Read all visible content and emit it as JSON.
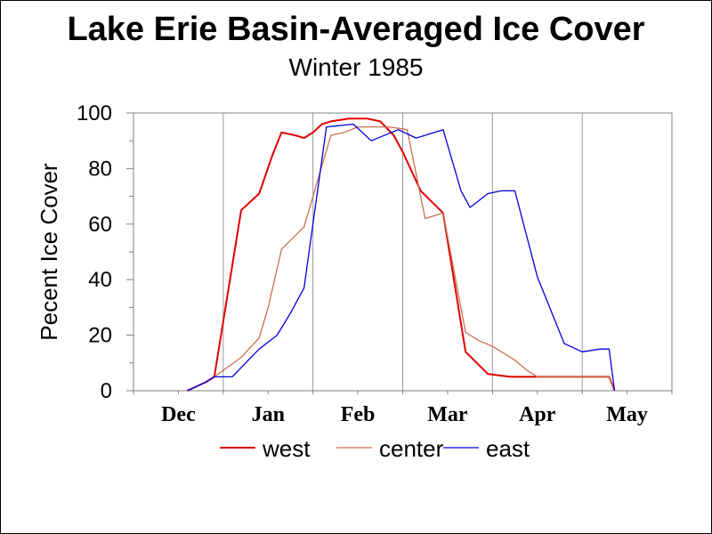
{
  "chart_data": {
    "type": "line",
    "title": "Lake Erie Basin-Averaged Ice Cover",
    "subtitle": "Winter 1985",
    "ylabel": "Pecent Ice Cover",
    "xlabel": "",
    "ylim": [
      0,
      100
    ],
    "yticks": [
      0,
      20,
      40,
      60,
      80,
      100
    ],
    "xlim": [
      0,
      6
    ],
    "month_ticks": [
      "Dec",
      "Jan",
      "Feb",
      "Mar",
      "Apr",
      "May"
    ],
    "grid": true,
    "legend_position": "bottom",
    "series": [
      {
        "name": "west",
        "color": "#e00000",
        "points": [
          [
            0.6,
            0
          ],
          [
            0.8,
            3
          ],
          [
            0.9,
            5
          ],
          [
            1.2,
            65
          ],
          [
            1.4,
            71
          ],
          [
            1.55,
            85
          ],
          [
            1.65,
            93
          ],
          [
            1.8,
            92
          ],
          [
            1.9,
            91
          ],
          [
            2.0,
            93
          ],
          [
            2.1,
            96
          ],
          [
            2.2,
            97
          ],
          [
            2.4,
            98
          ],
          [
            2.6,
            98
          ],
          [
            2.75,
            97
          ],
          [
            2.9,
            92
          ],
          [
            3.0,
            86
          ],
          [
            3.2,
            72
          ],
          [
            3.45,
            64
          ],
          [
            3.7,
            14
          ],
          [
            3.95,
            6
          ],
          [
            4.2,
            5
          ],
          [
            4.5,
            5
          ],
          [
            5.0,
            5
          ],
          [
            5.3,
            5
          ],
          [
            5.36,
            0
          ]
        ]
      },
      {
        "name": "center",
        "color": "#cc6f4f",
        "points": [
          [
            0.6,
            0
          ],
          [
            0.8,
            3
          ],
          [
            0.9,
            5
          ],
          [
            1.2,
            12
          ],
          [
            1.4,
            19
          ],
          [
            1.5,
            30
          ],
          [
            1.65,
            51
          ],
          [
            1.9,
            59
          ],
          [
            2.2,
            92
          ],
          [
            2.35,
            93
          ],
          [
            2.5,
            95
          ],
          [
            2.65,
            95
          ],
          [
            2.85,
            95
          ],
          [
            3.05,
            94
          ],
          [
            3.25,
            62
          ],
          [
            3.45,
            64
          ],
          [
            3.7,
            21
          ],
          [
            3.85,
            18
          ],
          [
            4.0,
            16
          ],
          [
            4.15,
            13
          ],
          [
            4.25,
            11
          ],
          [
            4.4,
            7
          ],
          [
            4.5,
            5
          ],
          [
            4.8,
            5
          ],
          [
            5.1,
            5
          ],
          [
            5.3,
            5
          ],
          [
            5.36,
            0
          ]
        ]
      },
      {
        "name": "east",
        "color": "#0000e0",
        "points": [
          [
            0.6,
            0
          ],
          [
            0.8,
            3
          ],
          [
            0.9,
            5
          ],
          [
            1.1,
            5
          ],
          [
            1.25,
            10
          ],
          [
            1.4,
            15
          ],
          [
            1.6,
            20
          ],
          [
            1.75,
            28
          ],
          [
            1.9,
            37
          ],
          [
            2.15,
            95
          ],
          [
            2.45,
            96
          ],
          [
            2.65,
            90
          ],
          [
            2.95,
            94
          ],
          [
            3.15,
            91
          ],
          [
            3.45,
            94
          ],
          [
            3.65,
            72
          ],
          [
            3.75,
            66
          ],
          [
            3.95,
            71
          ],
          [
            4.1,
            72
          ],
          [
            4.25,
            72
          ],
          [
            4.5,
            41
          ],
          [
            4.8,
            17
          ],
          [
            5.0,
            14
          ],
          [
            5.2,
            15
          ],
          [
            5.3,
            15
          ],
          [
            5.36,
            0
          ]
        ]
      }
    ]
  }
}
